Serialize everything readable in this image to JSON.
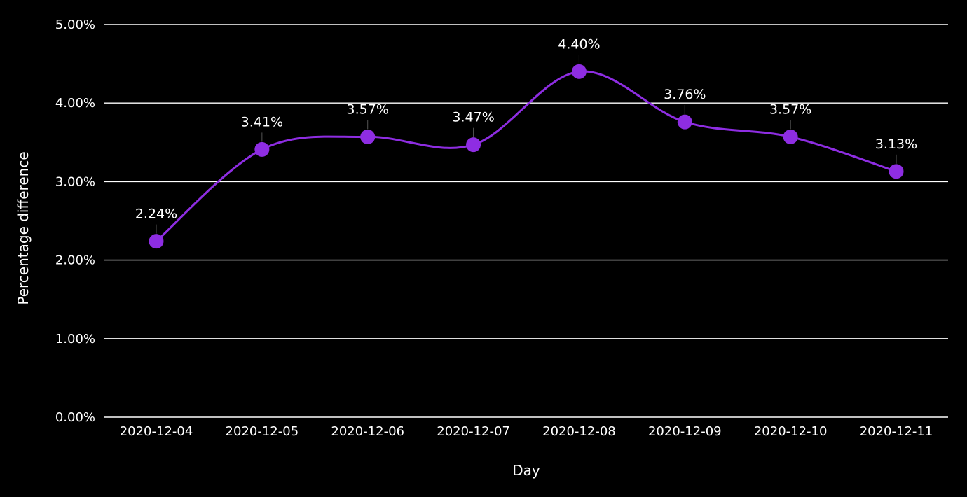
{
  "chart_data": {
    "type": "line",
    "title": "",
    "xlabel": "Day",
    "ylabel": "Percentage difference",
    "categories": [
      "2020-12-04",
      "2020-12-05",
      "2020-12-06",
      "2020-12-07",
      "2020-12-08",
      "2020-12-09",
      "2020-12-10",
      "2020-12-11"
    ],
    "series": [
      {
        "values": [
          2.24,
          3.41,
          3.57,
          3.47,
          4.4,
          3.76,
          3.57,
          3.13
        ],
        "data_labels": [
          "2.24%",
          "3.41%",
          "3.57%",
          "3.47%",
          "4.40%",
          "3.76%",
          "3.57%",
          "3.13%"
        ],
        "color": "#8e2de2",
        "smooth": true
      }
    ],
    "ylim": [
      0,
      5
    ],
    "y_ticks": [
      0,
      1,
      2,
      3,
      4,
      5
    ],
    "y_tick_labels": [
      "0.00%",
      "1.00%",
      "2.00%",
      "3.00%",
      "4.00%",
      "5.00%"
    ],
    "grid": true,
    "legend": "none",
    "background": "#000000",
    "grid_color": "#ffffff",
    "text_color": "#ffffff"
  }
}
